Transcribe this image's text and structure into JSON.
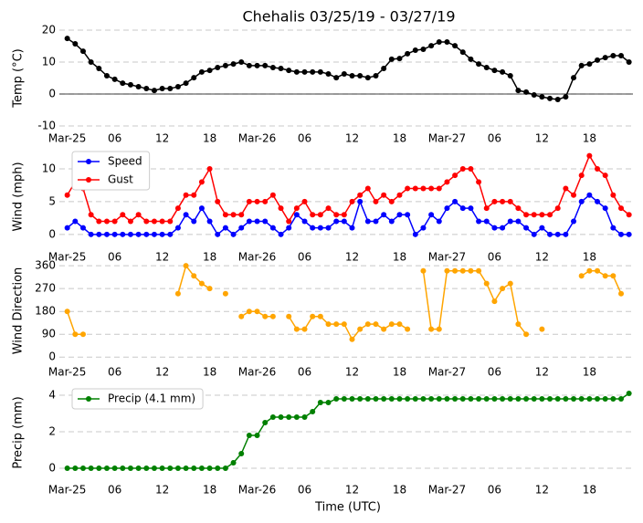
{
  "chart_data": [
    {
      "type": "line",
      "title": "Chehalis 03/25/19 - 03/27/19",
      "ylabel": "Temp (°C)",
      "x": [
        0,
        1,
        2,
        3,
        4,
        5,
        6,
        7,
        8,
        9,
        10,
        11,
        12,
        13,
        14,
        15,
        16,
        17,
        18,
        19,
        20,
        21,
        22,
        23,
        24,
        25,
        26,
        27,
        28,
        29,
        30,
        31,
        32,
        33,
        34,
        35,
        36,
        37,
        38,
        39,
        40,
        41,
        42,
        43,
        44,
        45,
        46,
        47,
        48,
        49,
        50,
        51,
        52,
        53,
        54,
        55,
        56,
        57,
        58,
        59,
        60,
        61,
        62,
        63,
        64,
        65,
        66,
        67,
        68,
        69,
        70,
        71
      ],
      "xlim": [
        -1,
        71.5
      ],
      "xticks": [
        {
          "value": 0,
          "label": "Mar-25"
        },
        {
          "value": 6,
          "label": "06"
        },
        12,
        18,
        {
          "value": 24,
          "label": "Mar-26"
        },
        {
          "value": 30,
          "label": "06"
        },
        {
          "value": 36,
          "label": "12"
        },
        {
          "value": 42,
          "label": "18"
        },
        {
          "value": 48,
          "label": "Mar-27"
        },
        {
          "value": 54,
          "label": "06"
        },
        {
          "value": 60,
          "label": "12"
        },
        {
          "value": 66,
          "label": "18"
        }
      ],
      "ylim": [
        -10,
        20
      ],
      "yticks": [
        -10,
        0,
        10,
        20
      ],
      "grid": true,
      "zero_line": true,
      "series": [
        {
          "color": "#000000",
          "values": [
            17.4,
            15.7,
            13.4,
            10,
            8,
            5.7,
            4.6,
            3.4,
            2.9,
            2.3,
            1.7,
            1.1,
            1.7,
            1.7,
            2.3,
            3.4,
            5.1,
            6.9,
            7.4,
            8.3,
            8.9,
            9.4,
            10,
            8.9,
            8.9,
            8.9,
            8.3,
            8,
            7.4,
            6.9,
            6.9,
            6.9,
            6.9,
            6.3,
            5.1,
            6.3,
            5.7,
            5.7,
            5.1,
            5.7,
            8,
            10.9,
            11.1,
            12.6,
            13.7,
            14,
            15.1,
            16.3,
            16.3,
            15.1,
            13.1,
            10.9,
            9.4,
            8.3,
            7.4,
            6.9,
            5.7,
            1.1,
            0.6,
            -0.3,
            -0.9,
            -1.4,
            -1.7,
            -0.9,
            5.1,
            8.9,
            9.4,
            10.6,
            11.4,
            12,
            12,
            10
          ]
        }
      ]
    },
    {
      "type": "line",
      "ylabel": "Wind (mph)",
      "legend": "upper left",
      "x": [
        0,
        1,
        2,
        3,
        4,
        5,
        6,
        7,
        8,
        9,
        10,
        11,
        12,
        13,
        14,
        15,
        16,
        17,
        18,
        19,
        20,
        21,
        22,
        23,
        24,
        25,
        26,
        27,
        28,
        29,
        30,
        31,
        32,
        33,
        34,
        35,
        36,
        37,
        38,
        39,
        40,
        41,
        42,
        43,
        44,
        45,
        46,
        47,
        48,
        49,
        50,
        51,
        52,
        53,
        54,
        55,
        56,
        57,
        58,
        59,
        60,
        61,
        62,
        63,
        64,
        65,
        66,
        67,
        68,
        69,
        70,
        71
      ],
      "xlim": [
        -1,
        71.5
      ],
      "xticks": [
        {
          "value": 0,
          "label": "Mar-25"
        },
        {
          "value": 6,
          "label": "06"
        },
        12,
        18,
        {
          "value": 24,
          "label": "Mar-26"
        },
        {
          "value": 30,
          "label": "06"
        },
        {
          "value": 36,
          "label": "12"
        },
        {
          "value": 42,
          "label": "18"
        },
        {
          "value": 48,
          "label": "Mar-27"
        },
        {
          "value": 54,
          "label": "06"
        },
        {
          "value": 60,
          "label": "12"
        },
        {
          "value": 66,
          "label": "18"
        }
      ],
      "ylim": [
        -1,
        12.5
      ],
      "yticks": [
        0,
        5,
        10
      ],
      "grid": true,
      "series": [
        {
          "name": "Speed",
          "color": "#0000ff",
          "values": [
            1,
            2,
            1,
            0,
            0,
            0,
            0,
            0,
            0,
            0,
            0,
            0,
            0,
            0,
            1,
            3,
            2,
            4,
            2,
            0,
            1,
            0,
            1,
            2,
            2,
            2,
            1,
            0,
            1,
            3,
            2,
            1,
            1,
            1,
            2,
            2,
            1,
            5,
            2,
            2,
            3,
            2,
            3,
            3,
            0,
            1,
            3,
            2,
            4,
            5,
            4,
            4,
            2,
            2,
            1,
            1,
            2,
            2,
            1,
            0,
            1,
            0,
            0,
            0,
            2,
            5,
            6,
            5,
            4,
            1,
            0,
            0
          ]
        },
        {
          "name": "Gust",
          "color": "#ff0000",
          "values": [
            6,
            8,
            7,
            3,
            2,
            2,
            2,
            3,
            2,
            3,
            2,
            2,
            2,
            2,
            4,
            6,
            6,
            8,
            10,
            5,
            3,
            3,
            3,
            5,
            5,
            5,
            6,
            4,
            2,
            4,
            5,
            3,
            3,
            4,
            3,
            3,
            5,
            6,
            7,
            5,
            6,
            5,
            6,
            7,
            7,
            7,
            7,
            7,
            8,
            9,
            10,
            10,
            8,
            4,
            5,
            5,
            5,
            4,
            3,
            3,
            3,
            3,
            4,
            7,
            6,
            9,
            12,
            10,
            9,
            6,
            4,
            3
          ]
        }
      ]
    },
    {
      "type": "line",
      "ylabel": "Wind Direction",
      "x": [
        0,
        1,
        2,
        3,
        4,
        5,
        6,
        7,
        8,
        9,
        10,
        11,
        12,
        13,
        14,
        15,
        16,
        17,
        18,
        19,
        20,
        21,
        22,
        23,
        24,
        25,
        26,
        27,
        28,
        29,
        30,
        31,
        32,
        33,
        34,
        35,
        36,
        37,
        38,
        39,
        40,
        41,
        42,
        43,
        44,
        45,
        46,
        47,
        48,
        49,
        50,
        51,
        52,
        53,
        54,
        55,
        56,
        57,
        58,
        59,
        60,
        61,
        62,
        63,
        64,
        65,
        66,
        67,
        68,
        69,
        70,
        71
      ],
      "xlim": [
        -1,
        71.5
      ],
      "xticks": [
        {
          "value": 0,
          "label": "Mar-25"
        },
        {
          "value": 6,
          "label": "06"
        },
        12,
        18,
        {
          "value": 24,
          "label": "Mar-26"
        },
        {
          "value": 30,
          "label": "06"
        },
        {
          "value": 36,
          "label": "12"
        },
        {
          "value": 42,
          "label": "18"
        },
        {
          "value": 48,
          "label": "Mar-27"
        },
        {
          "value": 54,
          "label": "06"
        },
        {
          "value": 60,
          "label": "12"
        },
        {
          "value": 66,
          "label": "18"
        }
      ],
      "ylim": [
        -10,
        375
      ],
      "yticks": [
        0,
        90,
        180,
        270,
        360
      ],
      "grid": true,
      "series": [
        {
          "color": "#ffa500",
          "values": [
            180,
            90,
            90,
            null,
            null,
            null,
            null,
            null,
            null,
            null,
            null,
            null,
            null,
            null,
            250,
            360,
            320,
            290,
            270,
            null,
            250,
            null,
            160,
            180,
            180,
            160,
            160,
            null,
            160,
            110,
            110,
            160,
            160,
            130,
            130,
            130,
            70,
            110,
            130,
            130,
            110,
            130,
            130,
            110,
            null,
            340,
            110,
            110,
            340,
            340,
            340,
            340,
            340,
            290,
            220,
            270,
            290,
            130,
            90,
            null,
            110,
            null,
            null,
            null,
            null,
            320,
            340,
            340,
            320,
            320,
            250,
            null
          ]
        }
      ]
    },
    {
      "type": "line",
      "ylabel": "Precip (mm)",
      "xlabel": "Time (UTC)",
      "legend": "upper left",
      "x": [
        0,
        1,
        2,
        3,
        4,
        5,
        6,
        7,
        8,
        9,
        10,
        11,
        12,
        13,
        14,
        15,
        16,
        17,
        18,
        19,
        20,
        21,
        22,
        23,
        24,
        25,
        26,
        27,
        28,
        29,
        30,
        31,
        32,
        33,
        34,
        35,
        36,
        37,
        38,
        39,
        40,
        41,
        42,
        43,
        44,
        45,
        46,
        47,
        48,
        49,
        50,
        51,
        52,
        53,
        54,
        55,
        56,
        57,
        58,
        59,
        60,
        61,
        62,
        63,
        64,
        65,
        66,
        67,
        68,
        69,
        70,
        71
      ],
      "xlim": [
        -1,
        71.5
      ],
      "xticks": [
        {
          "value": 0,
          "label": "Mar-25"
        },
        {
          "value": 6,
          "label": "06"
        },
        12,
        18,
        {
          "value": 24,
          "label": "Mar-26"
        },
        {
          "value": 30,
          "label": "06"
        },
        {
          "value": 36,
          "label": "12"
        },
        {
          "value": 42,
          "label": "18"
        },
        {
          "value": 48,
          "label": "Mar-27"
        },
        {
          "value": 54,
          "label": "06"
        },
        {
          "value": 60,
          "label": "12"
        },
        {
          "value": 66,
          "label": "18"
        }
      ],
      "ylim": [
        -0.4,
        4.3
      ],
      "yticks": [
        0,
        2,
        4
      ],
      "grid": true,
      "series": [
        {
          "name": "Precip (4.1 mm)",
          "color": "#008000",
          "values": [
            0,
            0,
            0,
            0,
            0,
            0,
            0,
            0,
            0,
            0,
            0,
            0,
            0,
            0,
            0,
            0,
            0,
            0,
            0,
            0,
            0,
            0.3,
            0.8,
            1.8,
            1.8,
            2.5,
            2.8,
            2.8,
            2.8,
            2.8,
            2.8,
            3.1,
            3.6,
            3.6,
            3.8,
            3.8,
            3.8,
            3.8,
            3.8,
            3.8,
            3.8,
            3.8,
            3.8,
            3.8,
            3.8,
            3.8,
            3.8,
            3.8,
            3.8,
            3.8,
            3.8,
            3.8,
            3.8,
            3.8,
            3.8,
            3.8,
            3.8,
            3.8,
            3.8,
            3.8,
            3.8,
            3.8,
            3.8,
            3.8,
            3.8,
            3.8,
            3.8,
            3.8,
            3.8,
            3.8,
            3.8,
            4.1
          ]
        }
      ]
    }
  ]
}
